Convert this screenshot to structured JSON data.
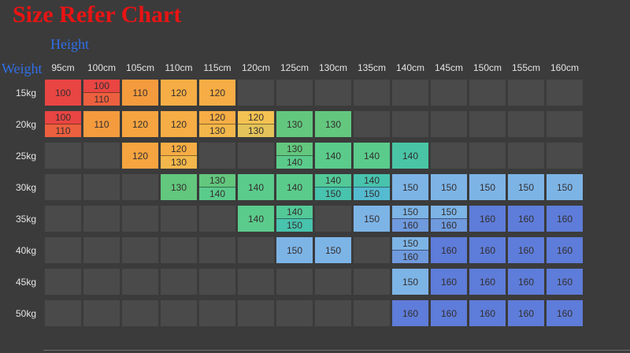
{
  "title": "Size Refer Chart",
  "axis": {
    "height_label": "Height",
    "weight_label": "Weight"
  },
  "colors": {
    "background": "#3b3b3b",
    "empty_cell": "#4a4a4a",
    "title": "#e81414",
    "axis_label": "#2f6fe8",
    "header_text": "#e4e4e4",
    "cell_text": "#332f2f"
  },
  "chart_data": {
    "type": "table",
    "title": "Size Refer Chart",
    "x_axis_label": "Height",
    "y_axis_label": "Weight",
    "columns": [
      "95cm",
      "100cm",
      "105cm",
      "110cm",
      "115cm",
      "120cm",
      "125cm",
      "130cm",
      "135cm",
      "140cm",
      "145cm",
      "150cm",
      "155cm",
      "160cm"
    ],
    "rows": [
      "15kg",
      "20kg",
      "25kg",
      "30kg",
      "35kg",
      "40kg",
      "45kg",
      "50kg"
    ],
    "cells": [
      [
        {
          "v": [
            "100"
          ],
          "c1": "#e94542"
        },
        {
          "v": [
            "100",
            "110"
          ],
          "c1": "#e94542",
          "c2": "#ed603f"
        },
        {
          "v": [
            "110"
          ],
          "c1": "#f49b3e"
        },
        {
          "v": [
            "120"
          ],
          "c1": "#f6ad45"
        },
        {
          "v": [
            "120"
          ],
          "c1": "#f6ad45"
        },
        null,
        null,
        null,
        null,
        null,
        null,
        null,
        null,
        null
      ],
      [
        {
          "v": [
            "100",
            "110"
          ],
          "c1": "#e94542",
          "c2": "#ed603f"
        },
        {
          "v": [
            "110"
          ],
          "c1": "#f49b3e"
        },
        {
          "v": [
            "120"
          ],
          "c1": "#f5a440"
        },
        {
          "v": [
            "120"
          ],
          "c1": "#f6ad45"
        },
        {
          "v": [
            "120",
            "130"
          ],
          "c1": "#f6ad45",
          "c2": "#f3b74b"
        },
        {
          "v": [
            "120",
            "130"
          ],
          "c1": "#f4c252",
          "c2": "#e3c45a"
        },
        {
          "v": [
            "130"
          ],
          "c1": "#63c77e"
        },
        {
          "v": [
            "130"
          ],
          "c1": "#63c77e"
        },
        null,
        null,
        null,
        null,
        null,
        null
      ],
      [
        null,
        null,
        {
          "v": [
            "120"
          ],
          "c1": "#f5a440"
        },
        {
          "v": [
            "120",
            "130"
          ],
          "c1": "#f6ad45",
          "c2": "#f3b74b"
        },
        null,
        null,
        {
          "v": [
            "130",
            "140"
          ],
          "c1": "#63c77e",
          "c2": "#5bcb8b"
        },
        {
          "v": [
            "140"
          ],
          "c1": "#5bcb8b"
        },
        {
          "v": [
            "140"
          ],
          "c1": "#5bcb8b"
        },
        {
          "v": [
            "140"
          ],
          "c1": "#49c5a5"
        },
        null,
        null,
        null,
        null
      ],
      [
        null,
        null,
        null,
        {
          "v": [
            "130"
          ],
          "c1": "#63c77e"
        },
        {
          "v": [
            "130",
            "140"
          ],
          "c1": "#63c77e",
          "c2": "#5bcb8b"
        },
        {
          "v": [
            "140"
          ],
          "c1": "#5bcb8b"
        },
        {
          "v": [
            "140"
          ],
          "c1": "#5bcb8b"
        },
        {
          "v": [
            "140",
            "150"
          ],
          "c1": "#53c997",
          "c2": "#48c3ad"
        },
        {
          "v": [
            "140",
            "150"
          ],
          "c1": "#48c3ad",
          "c2": "#55bbd0"
        },
        {
          "v": [
            "150"
          ],
          "c1": "#7db4e6"
        },
        {
          "v": [
            "150"
          ],
          "c1": "#7db4e6"
        },
        {
          "v": [
            "150"
          ],
          "c1": "#7db4e6"
        },
        {
          "v": [
            "150"
          ],
          "c1": "#7db4e6"
        },
        {
          "v": [
            "150"
          ],
          "c1": "#7db4e6"
        }
      ],
      [
        null,
        null,
        null,
        null,
        null,
        {
          "v": [
            "140"
          ],
          "c1": "#5bcb8b"
        },
        {
          "v": [
            "140",
            "150"
          ],
          "c1": "#53c997",
          "c2": "#48c3ad"
        },
        null,
        {
          "v": [
            "150"
          ],
          "c1": "#7db4e6"
        },
        {
          "v": [
            "150",
            "160"
          ],
          "c1": "#7db4e6",
          "c2": "#6f9ade"
        },
        {
          "v": [
            "150",
            "160"
          ],
          "c1": "#7db4e6",
          "c2": "#6f9ade"
        },
        {
          "v": [
            "160"
          ],
          "c1": "#5e7cd9"
        },
        {
          "v": [
            "160"
          ],
          "c1": "#5e7cd9"
        },
        {
          "v": [
            "160"
          ],
          "c1": "#5e7cd9"
        }
      ],
      [
        null,
        null,
        null,
        null,
        null,
        null,
        {
          "v": [
            "150"
          ],
          "c1": "#7db4e6"
        },
        {
          "v": [
            "150"
          ],
          "c1": "#7db4e6"
        },
        null,
        {
          "v": [
            "150",
            "160"
          ],
          "c1": "#7db4e6",
          "c2": "#6f9ade"
        },
        {
          "v": [
            "160"
          ],
          "c1": "#5e7cd9"
        },
        {
          "v": [
            "160"
          ],
          "c1": "#5e7cd9"
        },
        {
          "v": [
            "160"
          ],
          "c1": "#5e7cd9"
        },
        {
          "v": [
            "160"
          ],
          "c1": "#5e7cd9"
        }
      ],
      [
        null,
        null,
        null,
        null,
        null,
        null,
        null,
        null,
        null,
        {
          "v": [
            "150"
          ],
          "c1": "#7db4e6"
        },
        {
          "v": [
            "160"
          ],
          "c1": "#5e7cd9"
        },
        {
          "v": [
            "160"
          ],
          "c1": "#5e7cd9"
        },
        {
          "v": [
            "160"
          ],
          "c1": "#5e7cd9"
        },
        {
          "v": [
            "160"
          ],
          "c1": "#5e7cd9"
        }
      ],
      [
        null,
        null,
        null,
        null,
        null,
        null,
        null,
        null,
        null,
        {
          "v": [
            "160"
          ],
          "c1": "#5e7cd9"
        },
        {
          "v": [
            "160"
          ],
          "c1": "#5e7cd9"
        },
        {
          "v": [
            "160"
          ],
          "c1": "#5e7cd9"
        },
        {
          "v": [
            "160"
          ],
          "c1": "#5e7cd9"
        },
        {
          "v": [
            "160"
          ],
          "c1": "#5e7cd9"
        }
      ]
    ]
  }
}
